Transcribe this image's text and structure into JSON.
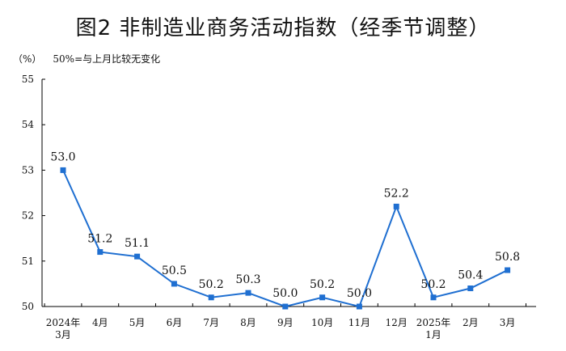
{
  "title": "图2  非制造业商务活动指数（经季节调整）",
  "unit_label": "（%）",
  "baseline_note": "50%=与上月比较无变化",
  "chart_data": {
    "type": "line",
    "title": "图2  非制造业商务活动指数（经季节调整）",
    "xlabel": "",
    "ylabel": "（%）",
    "ylim": [
      50,
      55
    ],
    "yticks": [
      "50",
      "51",
      "52",
      "53",
      "54",
      "55"
    ],
    "grid": false,
    "categories": [
      [
        "2024年",
        "3月"
      ],
      [
        "4月"
      ],
      [
        "5月"
      ],
      [
        "6月"
      ],
      [
        "7月"
      ],
      [
        "8月"
      ],
      [
        "9月"
      ],
      [
        "10月"
      ],
      [
        "11月"
      ],
      [
        "12月"
      ],
      [
        "2025年",
        "1月"
      ],
      [
        "2月"
      ],
      [
        "3月"
      ]
    ],
    "values": [
      53.0,
      51.2,
      51.1,
      50.5,
      50.2,
      50.3,
      50.0,
      50.2,
      50.0,
      52.2,
      50.2,
      50.4,
      50.8
    ],
    "value_labels": [
      "53.0",
      "51.2",
      "51.1",
      "50.5",
      "50.2",
      "50.3",
      "50.0",
      "50.2",
      "50.0",
      "52.2",
      "50.2",
      "50.4",
      "50.8"
    ],
    "line_color": "#1f6fd1",
    "marker": "square"
  }
}
